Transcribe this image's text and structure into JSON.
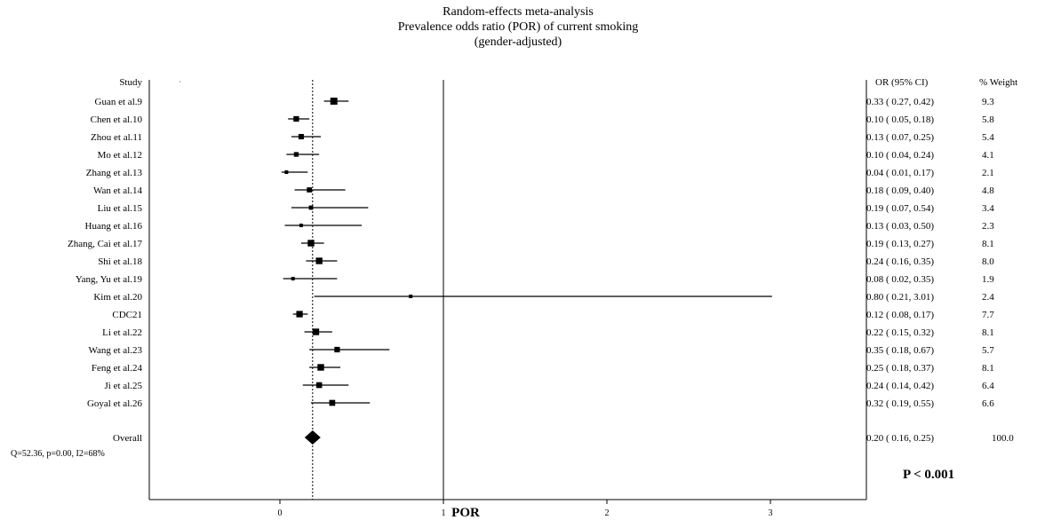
{
  "chart_data": {
    "type": "forest",
    "title": [
      "Random-effects meta-analysis",
      "Prevalence odds ratio (POR) of current smoking",
      "(gender-adjusted)"
    ],
    "xlabel": "POR",
    "xlim": [
      -0.8,
      3.6
    ],
    "xticks": [
      "0",
      "1",
      "2",
      "3"
    ],
    "reference_line": 1,
    "pooled_line": 0.2,
    "headers": {
      "study": "Study",
      "or_ci": "OR (95% CI)",
      "weight": "% Weight"
    },
    "studies": [
      {
        "name": "Guan et al.9",
        "or": 0.33,
        "lo": 0.27,
        "hi": 0.42,
        "or_text": "0.33",
        "lo_text": "0.27",
        "hi_text": "0.42",
        "weight": "9.3"
      },
      {
        "name": "Chen et al.10",
        "or": 0.1,
        "lo": 0.05,
        "hi": 0.18,
        "or_text": "0.10",
        "lo_text": "0.05",
        "hi_text": "0.18",
        "weight": "5.8"
      },
      {
        "name": "Zhou et al.11",
        "or": 0.13,
        "lo": 0.07,
        "hi": 0.25,
        "or_text": "0.13",
        "lo_text": "0.07",
        "hi_text": "0.25",
        "weight": "5.4"
      },
      {
        "name": "Mo et al.12",
        "or": 0.1,
        "lo": 0.04,
        "hi": 0.24,
        "or_text": "0.10",
        "lo_text": "0.04",
        "hi_text": "0.24",
        "weight": "4.1"
      },
      {
        "name": "Zhang et al.13",
        "or": 0.04,
        "lo": 0.01,
        "hi": 0.17,
        "or_text": "0.04",
        "lo_text": "0.01",
        "hi_text": "0.17",
        "weight": "2.1"
      },
      {
        "name": "Wan et al.14",
        "or": 0.18,
        "lo": 0.09,
        "hi": 0.4,
        "or_text": "0.18",
        "lo_text": "0.09",
        "hi_text": "0.40",
        "weight": "4.8"
      },
      {
        "name": "Liu et al.15",
        "or": 0.19,
        "lo": 0.07,
        "hi": 0.54,
        "or_text": "0.19",
        "lo_text": "0.07",
        "hi_text": "0.54",
        "weight": "3.4"
      },
      {
        "name": "Huang et al.16",
        "or": 0.13,
        "lo": 0.03,
        "hi": 0.5,
        "or_text": "0.13",
        "lo_text": "0.03",
        "hi_text": "0.50",
        "weight": "2.3"
      },
      {
        "name": "Zhang, Cai et al.17",
        "or": 0.19,
        "lo": 0.13,
        "hi": 0.27,
        "or_text": "0.19",
        "lo_text": "0.13",
        "hi_text": "0.27",
        "weight": "8.1"
      },
      {
        "name": "Shi et al.18",
        "or": 0.24,
        "lo": 0.16,
        "hi": 0.35,
        "or_text": "0.24",
        "lo_text": "0.16",
        "hi_text": "0.35",
        "weight": "8.0"
      },
      {
        "name": "Yang, Yu et al.19",
        "or": 0.08,
        "lo": 0.02,
        "hi": 0.35,
        "or_text": "0.08",
        "lo_text": "0.02",
        "hi_text": "0.35",
        "weight": "1.9"
      },
      {
        "name": "Kim et al.20",
        "or": 0.8,
        "lo": 0.21,
        "hi": 3.01,
        "or_text": "0.80",
        "lo_text": "0.21",
        "hi_text": "3.01",
        "weight": "2.4"
      },
      {
        "name": "CDC21",
        "or": 0.12,
        "lo": 0.08,
        "hi": 0.17,
        "or_text": "0.12",
        "lo_text": "0.08",
        "hi_text": "0.17",
        "weight": "7.7"
      },
      {
        "name": "Li et al.22",
        "or": 0.22,
        "lo": 0.15,
        "hi": 0.32,
        "or_text": "0.22",
        "lo_text": "0.15",
        "hi_text": "0.32",
        "weight": "8.1"
      },
      {
        "name": "Wang et al.23",
        "or": 0.35,
        "lo": 0.18,
        "hi": 0.67,
        "or_text": "0.35",
        "lo_text": "0.18",
        "hi_text": "0.67",
        "weight": "5.7"
      },
      {
        "name": "Feng et al.24",
        "or": 0.25,
        "lo": 0.18,
        "hi": 0.37,
        "or_text": "0.25",
        "lo_text": "0.18",
        "hi_text": "0.37",
        "weight": "8.1"
      },
      {
        "name": "Ji et al.25",
        "or": 0.24,
        "lo": 0.14,
        "hi": 0.42,
        "or_text": "0.24",
        "lo_text": "0.14",
        "hi_text": "0.42",
        "weight": "6.4"
      },
      {
        "name": "Goyal et al.26",
        "or": 0.32,
        "lo": 0.19,
        "hi": 0.55,
        "or_text": "0.32",
        "lo_text": "0.19",
        "hi_text": "0.55",
        "weight": "6.6"
      }
    ],
    "overall": {
      "name": "Overall",
      "or": 0.2,
      "lo": 0.16,
      "hi": 0.25,
      "or_text": "0.20",
      "lo_text": "0.16",
      "hi_text": "0.25",
      "weight": "100.0"
    },
    "heterogeneity": "Q=52.36, p=0.00, I2=68%",
    "p_value": "P < 0.001"
  }
}
